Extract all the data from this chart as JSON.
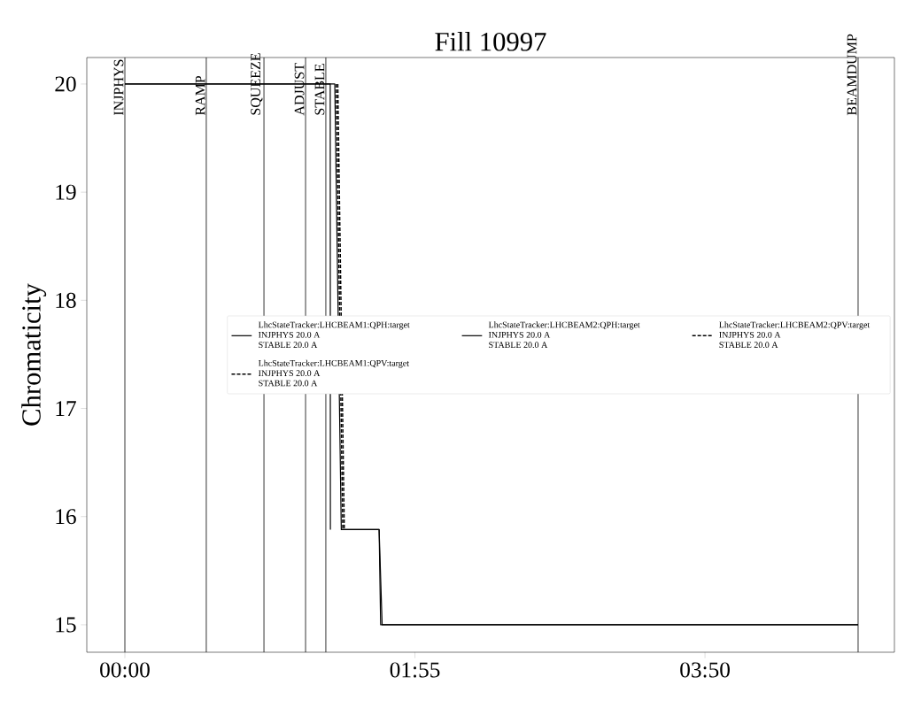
{
  "chart_data": {
    "type": "line",
    "title": "Fill 10997",
    "ylabel": "Chromaticity",
    "xlim": [
      -0.2516,
      5.085
    ],
    "ylim": [
      14.746,
      20.245
    ],
    "xticks": [
      {
        "value": 0,
        "label": "00:00"
      },
      {
        "value": 1.9167,
        "label": "01:55"
      },
      {
        "value": 3.8333,
        "label": "03:50"
      }
    ],
    "yticks": [
      15,
      16,
      17,
      18,
      19,
      20
    ],
    "grid": false,
    "legend": "right",
    "series": [
      {
        "name": "LhcStateTracker:LHCBEAM1:QPH:target\nINJPHYS 20.0 A\nSTABLE 20.0 A",
        "color": "#000000",
        "line_style": "solid",
        "x": [
          0,
          1.387,
          1.43,
          1.68,
          1.7,
          4.845
        ],
        "values": [
          20,
          20,
          15.88,
          15.88,
          15.0,
          15.0
        ]
      },
      {
        "name": "LhcStateTracker:LHCBEAM2:QPH:target\nINJPHYS 20.0 A\nSTABLE 20.0 A",
        "color": "#000000",
        "line_style": "solid",
        "x": [
          0,
          1.357,
          1.358,
          1.36,
          1.43,
          1.68,
          1.69,
          4.845
        ],
        "values": [
          20,
          20,
          15.88,
          null,
          15.88,
          15.88,
          15.0,
          15.0
        ]
      },
      {
        "name": "LhcStateTracker:LHCBEAM2:QPV:target\nINJPHYS 20.0 A\nSTABLE 20.0 A",
        "color": "#000000",
        "line_style": "dashed",
        "x": [
          1.397,
          1.44
        ],
        "values": [
          20,
          15.88
        ]
      },
      {
        "name": "LhcStateTracker:LHCBEAM1:QPV:target\nINJPHYS 20.0 A\nSTABLE 20.0 A",
        "color": "#000000",
        "line_style": "dashed",
        "x": [
          1.407,
          1.45
        ],
        "values": [
          20,
          15.88
        ]
      }
    ],
    "ref_lines": [
      {
        "axis": "x",
        "value": 0,
        "label": "INJPHYS",
        "color": "#000000"
      },
      {
        "axis": "x",
        "value": 0.538,
        "label": "RAMP",
        "color": "#000000"
      },
      {
        "axis": "x",
        "value": 0.919,
        "label": "SQUEEZE",
        "color": "#000000"
      },
      {
        "axis": "x",
        "value": 1.194,
        "label": "ADJUST",
        "color": "#000000"
      },
      {
        "axis": "x",
        "value": 1.328,
        "label": "STABLE",
        "color": "#000000"
      },
      {
        "axis": "x",
        "value": 4.845,
        "label": "BEAMDUMP",
        "color": "#000000"
      }
    ]
  }
}
